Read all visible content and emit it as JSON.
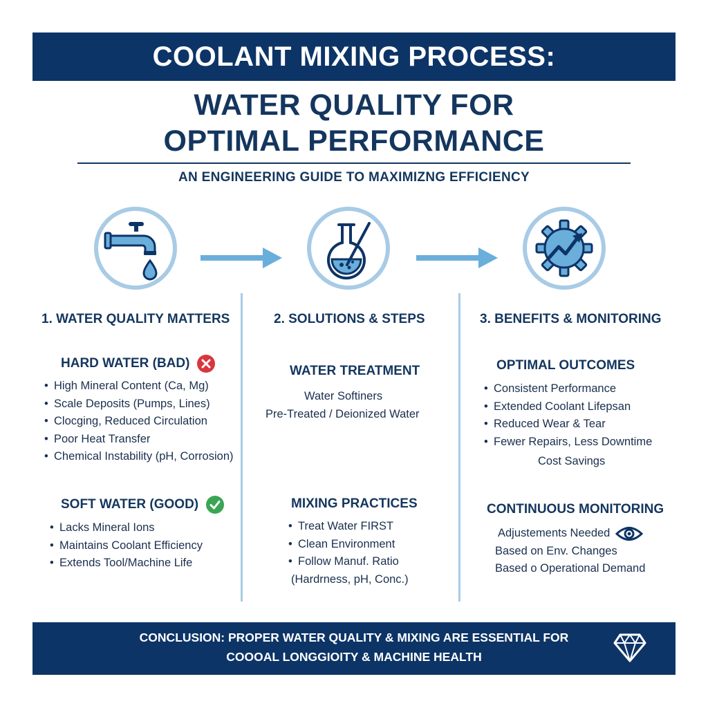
{
  "header": {
    "banner_title": "COOLANT MIXING PROCESS:",
    "subtitle_line1": "WATER QUALITY FOR",
    "subtitle_line2": "OPTIMAL PERFORMANCE",
    "tagline": "AN ENGINEERING GUIDE TO MAXIMIZNG EFFICIENCY"
  },
  "icons": {
    "step1": "water-tap-icon",
    "step2": "mixing-flask-icon",
    "step3": "gear-growth-icon",
    "arrow": "arrow-right-icon"
  },
  "columns": [
    {
      "heading": "1. WATER QUALITY MATTERS",
      "sections": [
        {
          "title": "HARD WATER (BAD)",
          "status_icon": "x-circle-icon",
          "items": [
            "High Mineral Content (Ca, Mg)",
            "Scale Deposits (Pumps, Lines)",
            "Clocging, Reduced Circulation",
            "Poor Heat Transfer",
            "Chemical Instability (pH, Corrosion)"
          ]
        },
        {
          "title": "SOFT WATER (GOOD)",
          "status_icon": "check-circle-icon",
          "items": [
            "Lacks Mineral Ions",
            "Maintains Coolant Efficiency",
            "Extends Tool/Machine Life"
          ]
        }
      ]
    },
    {
      "heading": "2. SOLUTIONS & STEPS",
      "sections": [
        {
          "title": "WATER TREATMENT",
          "lines": [
            "Water Softiners",
            "Pre-Treated / Deionized Water"
          ]
        },
        {
          "title": "MIXING PRACTICES",
          "items": [
            "Treat Water FIRST",
            "Clean Environment",
            "Follow Manuf. Ratio"
          ],
          "note": "(Hardrness, pH, Conc.)"
        }
      ]
    },
    {
      "heading": "3. BENEFITS & MONITORING",
      "sections": [
        {
          "title": "OPTIMAL OUTCOMES",
          "items": [
            "Consistent Performance",
            "Extended Coolant Lifepsan",
            "Reduced Wear & Tear",
            "Fewer Repairs, Less Downtime"
          ],
          "note": "Cost Savings"
        },
        {
          "title": "CONTINUOUS MONITORING",
          "lines": [
            "Adjustements Needed",
            "Based on Env. Changes",
            "Based o Operational Demand"
          ],
          "line_icon": "eye-icon"
        }
      ]
    }
  ],
  "footer": {
    "line1": "CONCLUSION: PROPER WATER QUALITY & MIXING ARE ESSENTIAL FOR",
    "line2": "COOOAL LONGGIOITY & MACHINE HEALTH",
    "logo_icon": "diamond-icon"
  },
  "colors": {
    "navy": "#0d3466",
    "light_blue": "#6aaedc",
    "circle_ring": "#a8cbe6",
    "bad_red": "#d9363e",
    "good_green": "#3aa655"
  },
  "bullet": "•"
}
